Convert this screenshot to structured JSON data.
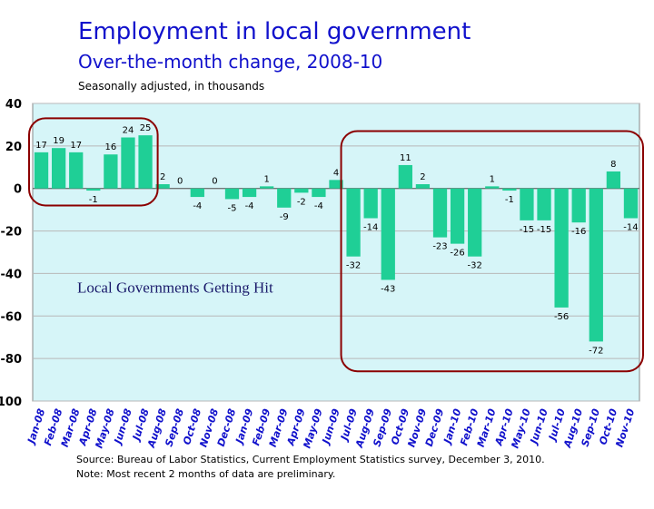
{
  "chart_data": {
    "type": "bar",
    "title": "Employment in local government",
    "subtitle": "Over-the-month change, 2008-10",
    "ylabel": "Seasonally adjusted, in thousands",
    "ylim": [
      -100,
      40
    ],
    "yticks": [
      40,
      20,
      0,
      -20,
      -40,
      -60,
      -80,
      -100
    ],
    "categories": [
      "Jan-08",
      "Feb-08",
      "Mar-08",
      "Apr-08",
      "May-08",
      "Jun-08",
      "Jul-08",
      "Aug-08",
      "Sep-08",
      "Oct-08",
      "Nov-08",
      "Dec-08",
      "Jan-09",
      "Feb-09",
      "Mar-09",
      "Apr-09",
      "May-09",
      "Jun-09",
      "Jul-09",
      "Aug-09",
      "Sep-09",
      "Oct-09",
      "Nov-09",
      "Dec-09",
      "Jan-10",
      "Feb-10",
      "Mar-10",
      "Apr-10",
      "May-10",
      "Jun-10",
      "Jul-10",
      "Aug-10",
      "Sep-10",
      "Oct-10",
      "Nov-10"
    ],
    "values": [
      17,
      19,
      17,
      -1,
      16,
      24,
      25,
      2,
      0,
      -4,
      0,
      -5,
      -4,
      1,
      -9,
      -2,
      -4,
      4,
      -32,
      -14,
      -43,
      11,
      2,
      -23,
      -26,
      -32,
      1,
      -1,
      -15,
      -15,
      -56,
      -16,
      -72,
      8,
      -14
    ],
    "labels": [
      "17",
      "19",
      "17",
      "-1",
      "16",
      "24",
      "25",
      "2",
      "0",
      "-4",
      "0",
      "-5",
      "-4",
      "1",
      "-9",
      "-2",
      "-4",
      "4",
      "-32",
      "-14",
      "-43",
      "11",
      "2",
      "-23",
      "-26",
      "-32",
      "1",
      "-1",
      "-15",
      "-15",
      "-56",
      "-16",
      "-72",
      "8",
      "-14"
    ],
    "annotation": "Local Governments Getting Hit",
    "grid": true,
    "legend": "none"
  },
  "footer": {
    "source": "Source:  Bureau of Labor Statistics, Current Employment Statistics survey, December 3, 2010.",
    "note": "Note:  Most recent 2 months of data are preliminary."
  },
  "colors": {
    "bar": "#1fcf96",
    "plot_bg": "#d6f5f8",
    "highlight": "#8b0000",
    "title": "#1111cc",
    "tick_label": "#1111cc",
    "grid": "#b8b8b8"
  }
}
